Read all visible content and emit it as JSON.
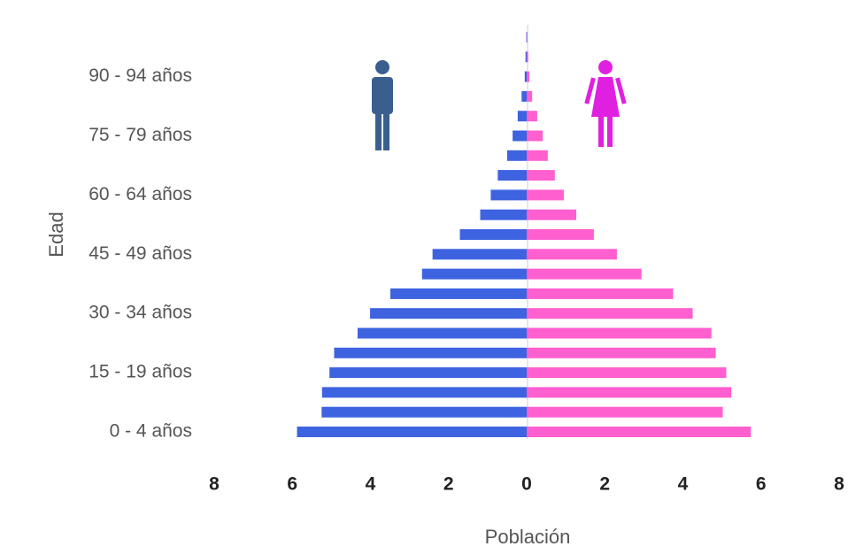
{
  "chart_data": {
    "type": "pyramid",
    "categories": [
      "0 - 4 años",
      null,
      null,
      "15 - 19 años",
      null,
      null,
      "30 - 34 años",
      null,
      null,
      "45 - 49 años",
      null,
      null,
      "60 - 64 años",
      null,
      null,
      "75 - 79 años",
      null,
      null,
      "90 - 94 años",
      null,
      null
    ],
    "series": [
      {
        "color": "#3d63e0",
        "values": [
          -5.88,
          -5.25,
          -5.24,
          -5.05,
          -4.93,
          -4.33,
          -4.01,
          -3.49,
          -2.68,
          -2.41,
          -1.71,
          -1.19,
          -0.92,
          -0.74,
          -0.5,
          -0.36,
          -0.23,
          -0.13,
          -0.05,
          -0.03,
          -0.01
        ]
      },
      {
        "color": "#ff5fcf",
        "values": [
          5.74,
          5.02,
          5.24,
          5.11,
          4.84,
          4.73,
          4.25,
          3.75,
          2.94,
          2.31,
          1.72,
          1.27,
          0.95,
          0.72,
          0.54,
          0.41,
          0.27,
          0.14,
          0.07,
          0.04,
          0.02
        ]
      }
    ],
    "xlabel": "Población",
    "ylabel": "Edad",
    "xlim": [
      -8,
      8
    ],
    "xticks": [
      {
        "value": -8,
        "label": "8"
      },
      {
        "value": -6,
        "label": "6"
      },
      {
        "value": -4,
        "label": "4"
      },
      {
        "value": -2,
        "label": "2"
      },
      0,
      2,
      4,
      6,
      8
    ]
  }
}
